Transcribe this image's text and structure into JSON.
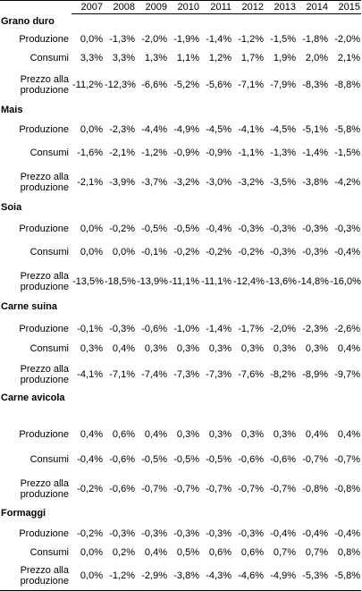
{
  "table": {
    "columns": [
      "2007",
      "2008",
      "2009",
      "2010",
      "2011",
      "2012",
      "2013",
      "2014",
      "2015"
    ],
    "groups": [
      {
        "title": "Grano duro",
        "rows": [
          {
            "label": "Produzione",
            "values": [
              "0,0%",
              "-1,3%",
              "-2,0%",
              "-1,9%",
              "-1,4%",
              "-1,2%",
              "-1,5%",
              "-1,8%",
              "-2,0%"
            ]
          },
          {
            "label": "Consumi",
            "values": [
              "3,3%",
              "3,3%",
              "1,3%",
              "1,1%",
              "1,2%",
              "1,7%",
              "1,9%",
              "2,0%",
              "2,1%"
            ]
          },
          {
            "label": "Prezzo alla produzione",
            "values": [
              "-11,2%",
              "-12,3%",
              "-6,6%",
              "-5,2%",
              "-5,6%",
              "-7,1%",
              "-7,9%",
              "-8,3%",
              "-8,8%"
            ]
          }
        ]
      },
      {
        "title": "Mais",
        "rows": [
          {
            "label": "Produzione",
            "values": [
              "0,0%",
              "-2,3%",
              "-4,4%",
              "-4,9%",
              "-4,5%",
              "-4,1%",
              "-4,5%",
              "-5,1%",
              "-5,8%"
            ]
          },
          {
            "label": "Consumi",
            "values": [
              "-1,6%",
              "-2,1%",
              "-1,2%",
              "-0,9%",
              "-0,9%",
              "-1,1%",
              "-1,3%",
              "-1,4%",
              "-1,5%"
            ]
          },
          {
            "label": "Prezzo alla produzione",
            "values": [
              "-2,1%",
              "-3,9%",
              "-3,7%",
              "-3,2%",
              "-3,0%",
              "-3,2%",
              "-3,5%",
              "-3,8%",
              "-4,2%"
            ]
          }
        ]
      },
      {
        "title": "Soia",
        "rows": [
          {
            "label": "Produzione",
            "values": [
              "0,0%",
              "-0,2%",
              "-0,5%",
              "-0,5%",
              "-0,4%",
              "-0,3%",
              "-0,3%",
              "-0,3%",
              "-0,3%"
            ]
          },
          {
            "label": "Consumi",
            "values": [
              "0,0%",
              "0,0%",
              "-0,1%",
              "-0,2%",
              "-0,2%",
              "-0,2%",
              "-0,3%",
              "-0,3%",
              "-0,4%"
            ]
          },
          {
            "label": "Prezzo alla produzione",
            "values": [
              "-13,5%",
              "-18,5%",
              "-13,9%",
              "-11,1%",
              "-11,1%",
              "-12,4%",
              "-13,6%",
              "-14,8%",
              "-16,0%"
            ]
          }
        ]
      },
      {
        "title": "Carne suina",
        "rows": [
          {
            "label": "Produzione",
            "values": [
              "-0,1%",
              "-0,3%",
              "-0,6%",
              "-1,0%",
              "-1,4%",
              "-1,7%",
              "-2,0%",
              "-2,3%",
              "-2,6%"
            ]
          },
          {
            "label": "Consumi",
            "values": [
              "0,3%",
              "0,4%",
              "0,3%",
              "0,3%",
              "0,3%",
              "0,3%",
              "0,3%",
              "0,3%",
              "0,4%"
            ]
          },
          {
            "label": "Prezzo alla produzione",
            "values": [
              "-4,1%",
              "-7,1%",
              "-7,4%",
              "-7,3%",
              "-7,3%",
              "-7,6%",
              "-8,2%",
              "-8,9%",
              "-9,7%"
            ]
          }
        ]
      },
      {
        "title": "Carne avicola",
        "rows": [
          {
            "label": "Produzione",
            "values": [
              "0,4%",
              "0,6%",
              "0,4%",
              "0,3%",
              "0,3%",
              "0,3%",
              "0,3%",
              "0,4%",
              "0,4%"
            ]
          },
          {
            "label": "Consumi",
            "values": [
              "-0,4%",
              "-0,6%",
              "-0,5%",
              "-0,5%",
              "-0,5%",
              "-0,6%",
              "-0,6%",
              "-0,7%",
              "-0,7%"
            ]
          },
          {
            "label": "Prezzo alla produzione",
            "values": [
              "-0,2%",
              "-0,6%",
              "-0,7%",
              "-0,7%",
              "-0,7%",
              "-0,7%",
              "-0,7%",
              "-0,8%",
              "-0,8%"
            ]
          }
        ]
      },
      {
        "title": "Formaggi",
        "rows": [
          {
            "label": "Produzione",
            "values": [
              "-0,2%",
              "-0,3%",
              "-0,3%",
              "-0,3%",
              "-0,3%",
              "-0,3%",
              "-0,4%",
              "-0,4%",
              "-0,4%"
            ]
          },
          {
            "label": "Consumi",
            "values": [
              "0,0%",
              "0,2%",
              "0,4%",
              "0,5%",
              "0,6%",
              "0,6%",
              "0,7%",
              "0,7%",
              "0,8%"
            ]
          },
          {
            "label": "Prezzo alla produzione",
            "values": [
              "0,0%",
              "-1,2%",
              "-2,9%",
              "-3,8%",
              "-4,3%",
              "-4,6%",
              "-4,9%",
              "-5,3%",
              "-5,8%"
            ]
          }
        ]
      }
    ]
  }
}
